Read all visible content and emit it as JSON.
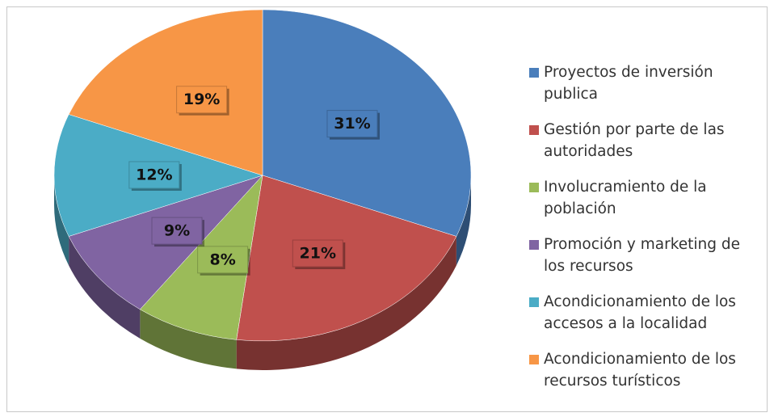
{
  "chart_data": {
    "type": "pie",
    "categories": [
      "Proyectos de inversión publica",
      "Gestión por parte de las autoridades",
      "Involucramiento de la población",
      "Promoción y marketing de los recursos",
      "Acondicionamiento de los accesos a la localidad",
      "Acondicionamiento de los recursos turísticos"
    ],
    "values": [
      31,
      21,
      8,
      9,
      12,
      19
    ],
    "value_labels": [
      "31%",
      "21%",
      "8%",
      "9%",
      "12%",
      "19%"
    ],
    "colors": [
      "#4a7ebb",
      "#c0504d",
      "#9bbb59",
      "#8064a2",
      "#4bacc6",
      "#f79646"
    ]
  }
}
